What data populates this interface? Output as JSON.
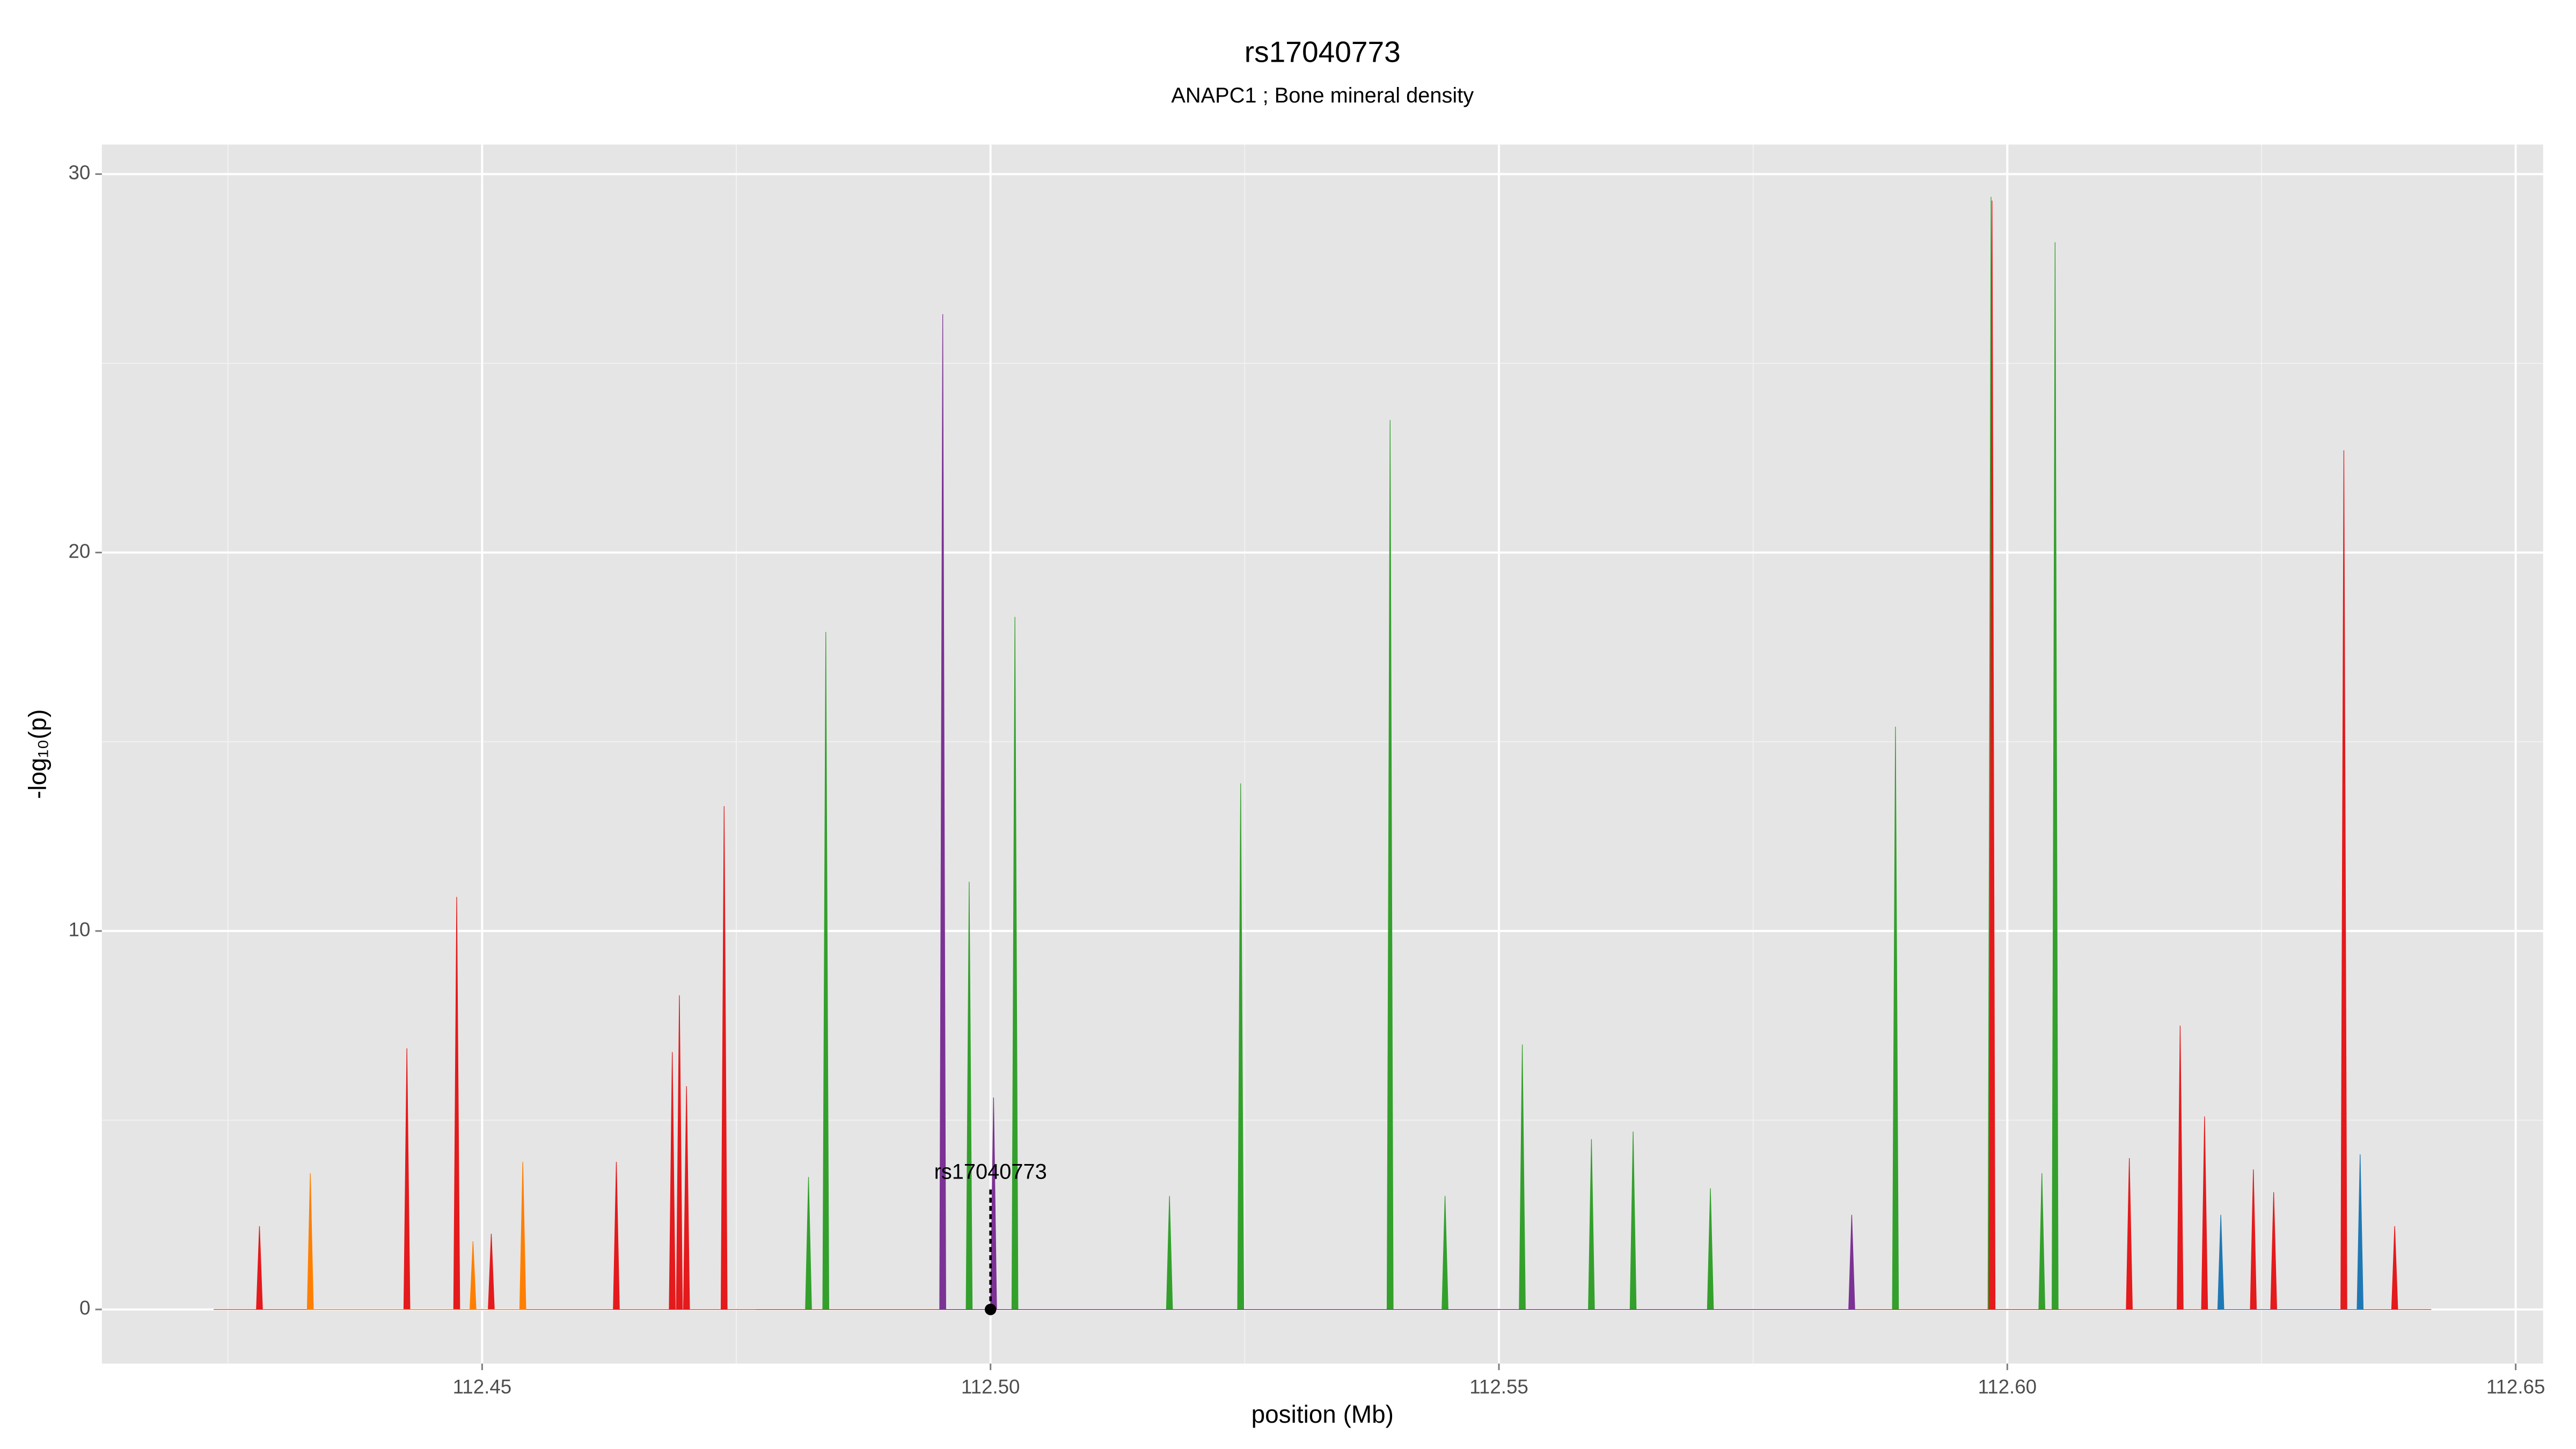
{
  "chart_data": {
    "type": "area",
    "title": "rs17040773",
    "subtitle": "ANAPC1 ; Bone mineral density",
    "x_label": "position (Mb)",
    "y_label": "-log₁₀(p)",
    "xlim": [
      112.4126,
      112.6527
    ],
    "ylim": [
      -1.43,
      30.78
    ],
    "xticks": [
      {
        "value": 112.45,
        "label": "112.45"
      },
      {
        "value": 112.5,
        "label": "112.50"
      },
      {
        "value": 112.55,
        "label": "112.55"
      },
      {
        "value": 112.6,
        "label": "112.60"
      },
      {
        "value": 112.65,
        "label": "112.65"
      }
    ],
    "yticks": [
      0,
      10,
      20,
      30
    ],
    "grid": true,
    "series": [
      {
        "color": "#33a02c",
        "x": [
          112.4769,
          112.4818,
          112.4821,
          112.4824,
          112.4835,
          112.4838,
          112.4841,
          112.4976,
          112.4979,
          112.4982,
          112.5021,
          112.5024,
          112.5027,
          112.5173,
          112.5176,
          112.5179,
          112.5243,
          112.5246,
          112.5249,
          112.539,
          112.5393,
          112.5396,
          112.5444,
          112.5447,
          112.545,
          112.552,
          112.5523,
          112.5526,
          112.5588,
          112.5591,
          112.5594,
          112.5629,
          112.5632,
          112.5635,
          112.5705,
          112.5708,
          112.5711,
          112.5887,
          112.589,
          112.5893,
          112.5981,
          112.5984,
          112.5987,
          112.6031,
          112.6034,
          112.6037,
          112.6044,
          112.6047,
          112.605,
          112.6053
        ],
        "values": [
          0,
          0,
          3.5,
          0,
          0,
          17.9,
          0,
          0,
          11.3,
          0,
          0,
          18.3,
          0,
          0,
          3,
          0,
          0,
          13.9,
          0,
          0,
          23.5,
          0,
          0,
          3,
          0,
          0,
          7,
          0,
          0,
          4.5,
          0,
          0,
          4.7,
          0,
          0,
          3.2,
          0,
          0,
          15.4,
          0,
          0,
          29.4,
          0,
          0,
          3.6,
          0,
          0,
          28.2,
          0,
          0
        ]
      },
      {
        "color": "#e41a1c",
        "x": [
          112.4236,
          112.4278,
          112.4281,
          112.4284,
          112.4423,
          112.4426,
          112.4429,
          112.4472,
          112.4475,
          112.4478,
          112.4506,
          112.4509,
          112.4512,
          112.4629,
          112.4632,
          112.4635,
          112.4684,
          112.4687,
          112.469,
          112.4691,
          112.4694,
          112.4697,
          112.4698,
          112.4701,
          112.4704,
          112.4735,
          112.4738,
          112.4741,
          112.5982,
          112.5985,
          112.5988,
          112.6117,
          112.612,
          112.6123,
          112.6167,
          112.617,
          112.6173,
          112.6191,
          112.6194,
          112.6197,
          112.6239,
          112.6242,
          112.6245,
          112.6259,
          112.6262,
          112.6265,
          112.6328,
          112.6331,
          112.6334,
          112.6378,
          112.6381,
          112.6384,
          112.6417
        ],
        "values": [
          0,
          0,
          2.2,
          0,
          0,
          6.9,
          0,
          0,
          10.9,
          0,
          0,
          2,
          0,
          0,
          3.9,
          0,
          0,
          6.8,
          0,
          0,
          8.3,
          0,
          0,
          5.9,
          0,
          0,
          13.3,
          0,
          0,
          29.3,
          0,
          0,
          4,
          0,
          0,
          7.5,
          0,
          0,
          5.1,
          0,
          0,
          3.7,
          0,
          0,
          3.1,
          0,
          0,
          22.7,
          0,
          0,
          2.2,
          0,
          0
        ]
      },
      {
        "color": "#7b3294",
        "x": [
          112.495,
          112.4953,
          112.4956,
          112.5,
          112.5003,
          112.5006,
          112.5844,
          112.5847,
          112.585
        ],
        "values": [
          0,
          26.3,
          0,
          0,
          5.6,
          0,
          0,
          2.5,
          0
        ]
      },
      {
        "color": "#ff7f00",
        "x": [
          112.4328,
          112.4331,
          112.4334,
          112.4488,
          112.4491,
          112.4494,
          112.4537,
          112.454,
          112.4543
        ],
        "values": [
          0,
          3.6,
          0,
          0,
          1.8,
          0,
          0,
          3.9,
          0
        ]
      },
      {
        "color": "#1f78b4",
        "x": [
          112.6207,
          112.621,
          112.6213,
          112.6344,
          112.6347,
          112.635
        ],
        "values": [
          0,
          2.5,
          0,
          0,
          4.1,
          0
        ]
      }
    ],
    "highlight_point": {
      "x": 112.5,
      "y": 0
    },
    "annotations": [
      {
        "text": "rs17040773",
        "x": 112.5,
        "y": 3.6
      }
    ]
  }
}
